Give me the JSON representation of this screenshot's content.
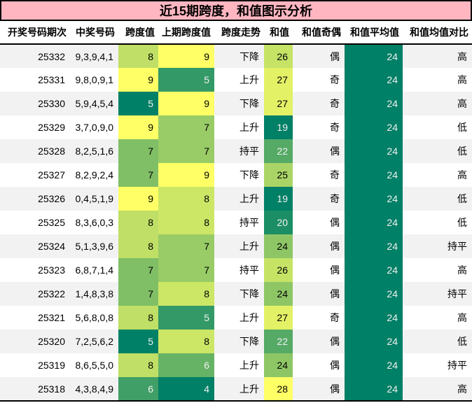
{
  "title": "近15期跨度，和值图示分析",
  "theme": {
    "title_bg": "#FFB6C1",
    "border_color": "#000000",
    "stripe_bg": "#F2F2F2",
    "heat_low": "#008066",
    "heat_high": "#FFFF66",
    "light_text": "#F1F1F1"
  },
  "table": {
    "columns": [
      "开奖号码期次",
      "中奖号码",
      "跨度值",
      "上期跨度值",
      "跨度走势",
      "和值",
      "和值奇偶",
      "和值平均值",
      "和值均值对比"
    ],
    "rows": [
      {
        "period": "25332",
        "numbers": "9,3,9,4,1",
        "span": "8",
        "span_bg": "#BFDF66",
        "span_fg": "#000000",
        "prev_span": "9",
        "prev_bg": "#FFFF66",
        "prev_fg": "#000000",
        "trend": "下降",
        "sum": "26",
        "sum_bg": "#C6E366",
        "sum_fg": "#000000",
        "parity": "偶",
        "avg": "24",
        "avg_bg": "#008066",
        "avg_fg": "#F1F1F1",
        "vs_avg": "高"
      },
      {
        "period": "25331",
        "numbers": "9,8,0,9,1",
        "span": "9",
        "span_bg": "#FFFF66",
        "span_fg": "#000000",
        "prev_span": "5",
        "prev_bg": "#339966",
        "prev_fg": "#F1F1F1",
        "trend": "上升",
        "sum": "27",
        "sum_bg": "#E3F166",
        "sum_fg": "#000000",
        "parity": "奇",
        "avg": "24",
        "avg_bg": "#008066",
        "avg_fg": "#F1F1F1",
        "vs_avg": "高"
      },
      {
        "period": "25330",
        "numbers": "5,9,4,5,4",
        "span": "5",
        "span_bg": "#008066",
        "span_fg": "#F1F1F1",
        "prev_span": "9",
        "prev_bg": "#FFFF66",
        "prev_fg": "#000000",
        "trend": "下降",
        "sum": "27",
        "sum_bg": "#E3F166",
        "sum_fg": "#000000",
        "parity": "奇",
        "avg": "24",
        "avg_bg": "#008066",
        "avg_fg": "#F1F1F1",
        "vs_avg": "高"
      },
      {
        "period": "25329",
        "numbers": "3,7,0,9,0",
        "span": "9",
        "span_bg": "#FFFF66",
        "span_fg": "#000000",
        "prev_span": "7",
        "prev_bg": "#99CC66",
        "prev_fg": "#000000",
        "trend": "上升",
        "sum": "19",
        "sum_bg": "#008066",
        "sum_fg": "#F1F1F1",
        "parity": "奇",
        "avg": "24",
        "avg_bg": "#008066",
        "avg_fg": "#F1F1F1",
        "vs_avg": "低"
      },
      {
        "period": "25328",
        "numbers": "8,2,5,1,6",
        "span": "7",
        "span_bg": "#80BF66",
        "span_fg": "#000000",
        "prev_span": "7",
        "prev_bg": "#99CC66",
        "prev_fg": "#000000",
        "trend": "持平",
        "sum": "22",
        "sum_bg": "#55AA66",
        "sum_fg": "#F1F1F1",
        "parity": "偶",
        "avg": "24",
        "avg_bg": "#008066",
        "avg_fg": "#F1F1F1",
        "vs_avg": "低"
      },
      {
        "period": "25327",
        "numbers": "8,2,9,2,4",
        "span": "7",
        "span_bg": "#80BF66",
        "span_fg": "#000000",
        "prev_span": "9",
        "prev_bg": "#FFFF66",
        "prev_fg": "#000000",
        "trend": "下降",
        "sum": "25",
        "sum_bg": "#AAD566",
        "sum_fg": "#000000",
        "parity": "奇",
        "avg": "24",
        "avg_bg": "#008066",
        "avg_fg": "#F1F1F1",
        "vs_avg": "高"
      },
      {
        "period": "25326",
        "numbers": "0,4,5,1,9",
        "span": "9",
        "span_bg": "#FFFF66",
        "span_fg": "#000000",
        "prev_span": "8",
        "prev_bg": "#CCE666",
        "prev_fg": "#000000",
        "trend": "上升",
        "sum": "19",
        "sum_bg": "#008066",
        "sum_fg": "#F1F1F1",
        "parity": "奇",
        "avg": "24",
        "avg_bg": "#008066",
        "avg_fg": "#F1F1F1",
        "vs_avg": "低"
      },
      {
        "period": "25325",
        "numbers": "8,3,6,0,3",
        "span": "8",
        "span_bg": "#BFDF66",
        "span_fg": "#000000",
        "prev_span": "8",
        "prev_bg": "#CCE666",
        "prev_fg": "#000000",
        "trend": "持平",
        "sum": "20",
        "sum_bg": "#1C8E66",
        "sum_fg": "#F1F1F1",
        "parity": "偶",
        "avg": "24",
        "avg_bg": "#008066",
        "avg_fg": "#F1F1F1",
        "vs_avg": "低"
      },
      {
        "period": "25324",
        "numbers": "5,1,3,9,6",
        "span": "8",
        "span_bg": "#BFDF66",
        "span_fg": "#000000",
        "prev_span": "7",
        "prev_bg": "#99CC66",
        "prev_fg": "#000000",
        "trend": "上升",
        "sum": "24",
        "sum_bg": "#8EC666",
        "sum_fg": "#000000",
        "parity": "偶",
        "avg": "24",
        "avg_bg": "#008066",
        "avg_fg": "#F1F1F1",
        "vs_avg": "持平"
      },
      {
        "period": "25323",
        "numbers": "6,8,7,1,4",
        "span": "7",
        "span_bg": "#80BF66",
        "span_fg": "#000000",
        "prev_span": "7",
        "prev_bg": "#99CC66",
        "prev_fg": "#000000",
        "trend": "持平",
        "sum": "26",
        "sum_bg": "#C6E366",
        "sum_fg": "#000000",
        "parity": "偶",
        "avg": "24",
        "avg_bg": "#008066",
        "avg_fg": "#F1F1F1",
        "vs_avg": "高"
      },
      {
        "period": "25322",
        "numbers": "1,4,8,3,8",
        "span": "7",
        "span_bg": "#80BF66",
        "span_fg": "#000000",
        "prev_span": "8",
        "prev_bg": "#CCE666",
        "prev_fg": "#000000",
        "trend": "下降",
        "sum": "24",
        "sum_bg": "#8EC666",
        "sum_fg": "#000000",
        "parity": "偶",
        "avg": "24",
        "avg_bg": "#008066",
        "avg_fg": "#F1F1F1",
        "vs_avg": "持平"
      },
      {
        "period": "25321",
        "numbers": "5,6,8,0,8",
        "span": "8",
        "span_bg": "#BFDF66",
        "span_fg": "#000000",
        "prev_span": "5",
        "prev_bg": "#339966",
        "prev_fg": "#F1F1F1",
        "trend": "上升",
        "sum": "27",
        "sum_bg": "#E3F166",
        "sum_fg": "#000000",
        "parity": "奇",
        "avg": "24",
        "avg_bg": "#008066",
        "avg_fg": "#F1F1F1",
        "vs_avg": "高"
      },
      {
        "period": "25320",
        "numbers": "7,2,5,6,2",
        "span": "5",
        "span_bg": "#008066",
        "span_fg": "#F1F1F1",
        "prev_span": "8",
        "prev_bg": "#CCE666",
        "prev_fg": "#000000",
        "trend": "下降",
        "sum": "22",
        "sum_bg": "#55AA66",
        "sum_fg": "#F1F1F1",
        "parity": "偶",
        "avg": "24",
        "avg_bg": "#008066",
        "avg_fg": "#F1F1F1",
        "vs_avg": "低"
      },
      {
        "period": "25319",
        "numbers": "8,6,5,5,0",
        "span": "8",
        "span_bg": "#BFDF66",
        "span_fg": "#000000",
        "prev_span": "6",
        "prev_bg": "#66B366",
        "prev_fg": "#F1F1F1",
        "trend": "上升",
        "sum": "24",
        "sum_bg": "#8EC666",
        "sum_fg": "#000000",
        "parity": "偶",
        "avg": "24",
        "avg_bg": "#008066",
        "avg_fg": "#F1F1F1",
        "vs_avg": "持平"
      },
      {
        "period": "25318",
        "numbers": "4,3,8,4,9",
        "span": "6",
        "span_bg": "#409F66",
        "span_fg": "#F1F1F1",
        "prev_span": "4",
        "prev_bg": "#008066",
        "prev_fg": "#F1F1F1",
        "trend": "上升",
        "sum": "28",
        "sum_bg": "#FFFF66",
        "sum_fg": "#000000",
        "parity": "偶",
        "avg": "24",
        "avg_bg": "#008066",
        "avg_fg": "#F1F1F1",
        "vs_avg": "高"
      }
    ]
  },
  "chart_data": {
    "type": "table",
    "title": "近15期跨度，和值图示分析",
    "columns": [
      "开奖号码期次",
      "中奖号码",
      "跨度值",
      "上期跨度值",
      "跨度走势",
      "和值",
      "和值奇偶",
      "和值平均值",
      "和值均值对比"
    ],
    "rows": [
      [
        "25332",
        "9,3,9,4,1",
        8,
        9,
        "下降",
        26,
        "偶",
        24,
        "高"
      ],
      [
        "25331",
        "9,8,0,9,1",
        9,
        5,
        "上升",
        27,
        "奇",
        24,
        "高"
      ],
      [
        "25330",
        "5,9,4,5,4",
        5,
        9,
        "下降",
        27,
        "奇",
        24,
        "高"
      ],
      [
        "25329",
        "3,7,0,9,0",
        9,
        7,
        "上升",
        19,
        "奇",
        24,
        "低"
      ],
      [
        "25328",
        "8,2,5,1,6",
        7,
        7,
        "持平",
        22,
        "偶",
        24,
        "低"
      ],
      [
        "25327",
        "8,2,9,2,4",
        7,
        9,
        "下降",
        25,
        "奇",
        24,
        "高"
      ],
      [
        "25326",
        "0,4,5,1,9",
        9,
        8,
        "上升",
        19,
        "奇",
        24,
        "低"
      ],
      [
        "25325",
        "8,3,6,0,3",
        8,
        8,
        "持平",
        20,
        "偶",
        24,
        "低"
      ],
      [
        "25324",
        "5,1,3,9,6",
        8,
        7,
        "上升",
        24,
        "偶",
        24,
        "持平"
      ],
      [
        "25323",
        "6,8,7,1,4",
        7,
        7,
        "持平",
        26,
        "偶",
        24,
        "高"
      ],
      [
        "25322",
        "1,4,8,3,8",
        7,
        8,
        "下降",
        24,
        "偶",
        24,
        "持平"
      ],
      [
        "25321",
        "5,6,8,0,8",
        8,
        5,
        "上升",
        27,
        "奇",
        24,
        "高"
      ],
      [
        "25320",
        "7,2,5,6,2",
        5,
        8,
        "下降",
        22,
        "偶",
        24,
        "低"
      ],
      [
        "25319",
        "8,6,5,5,0",
        8,
        6,
        "上升",
        24,
        "偶",
        24,
        "持平"
      ],
      [
        "25318",
        "4,3,8,4,9",
        6,
        4,
        "上升",
        28,
        "偶",
        24,
        "高"
      ]
    ],
    "heatmap_columns": [
      "跨度值",
      "上期跨度值",
      "和值",
      "和值平均值"
    ],
    "colormap": {
      "low_color": "#008066",
      "high_color": "#FFFF66",
      "note": "green-to-yellow gradient normalized per column (low=dark green, high=yellow); light text #F1F1F1 on dark cells",
      "column_ranges": {
        "跨度值": [
          5,
          9
        ],
        "上期跨度值": [
          4,
          9
        ],
        "和值": [
          19,
          28
        ],
        "和值平均值": [
          24,
          24
        ]
      }
    },
    "legend_position": "none",
    "grid": false
  }
}
